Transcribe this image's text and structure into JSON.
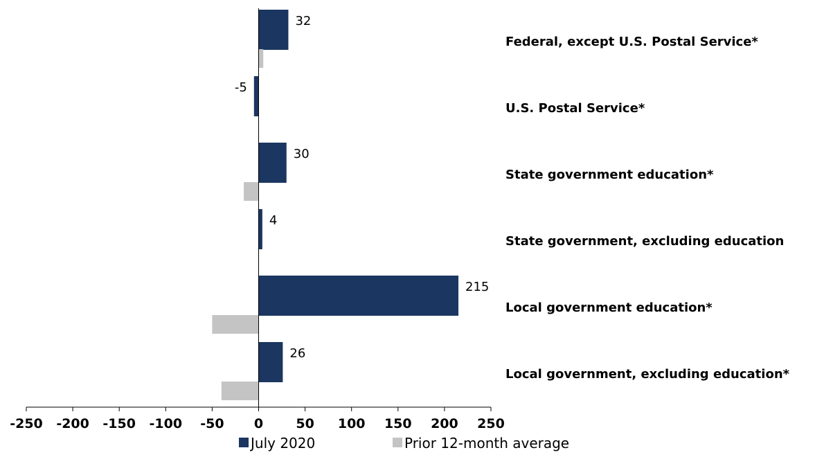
{
  "chart_data": {
    "type": "bar",
    "orientation": "horizontal",
    "categories": [
      "Federal, except U.S. Postal Service*",
      "U.S. Postal Service*",
      "State government education*",
      "State government, excluding education",
      "Local government education*",
      "Local government, excluding education*"
    ],
    "series": [
      {
        "name": "July 2020",
        "color": "#1b3660",
        "values": [
          32,
          -5,
          30,
          4,
          215,
          26
        ],
        "data_labels": [
          "32",
          "-5",
          "30",
          "4",
          "215",
          "26"
        ]
      },
      {
        "name": "Prior 12-month average",
        "color": "#c4c4c4",
        "values": [
          5,
          0,
          -16,
          0,
          -50,
          -40
        ]
      }
    ],
    "xlim": [
      -250,
      250
    ],
    "xticks": [
      -250,
      -200,
      -150,
      -100,
      -50,
      0,
      50,
      100,
      150,
      200,
      250
    ],
    "xtick_labels": [
      "-250",
      "-200",
      "-150",
      "-100",
      "-50",
      "0",
      "50",
      "100",
      "150",
      "200",
      "250"
    ],
    "title": "",
    "xlabel": "",
    "ylabel": "",
    "grid": false,
    "legend": {
      "position": "bottom",
      "entries": [
        "July 2020",
        "Prior 12-month average"
      ]
    }
  }
}
